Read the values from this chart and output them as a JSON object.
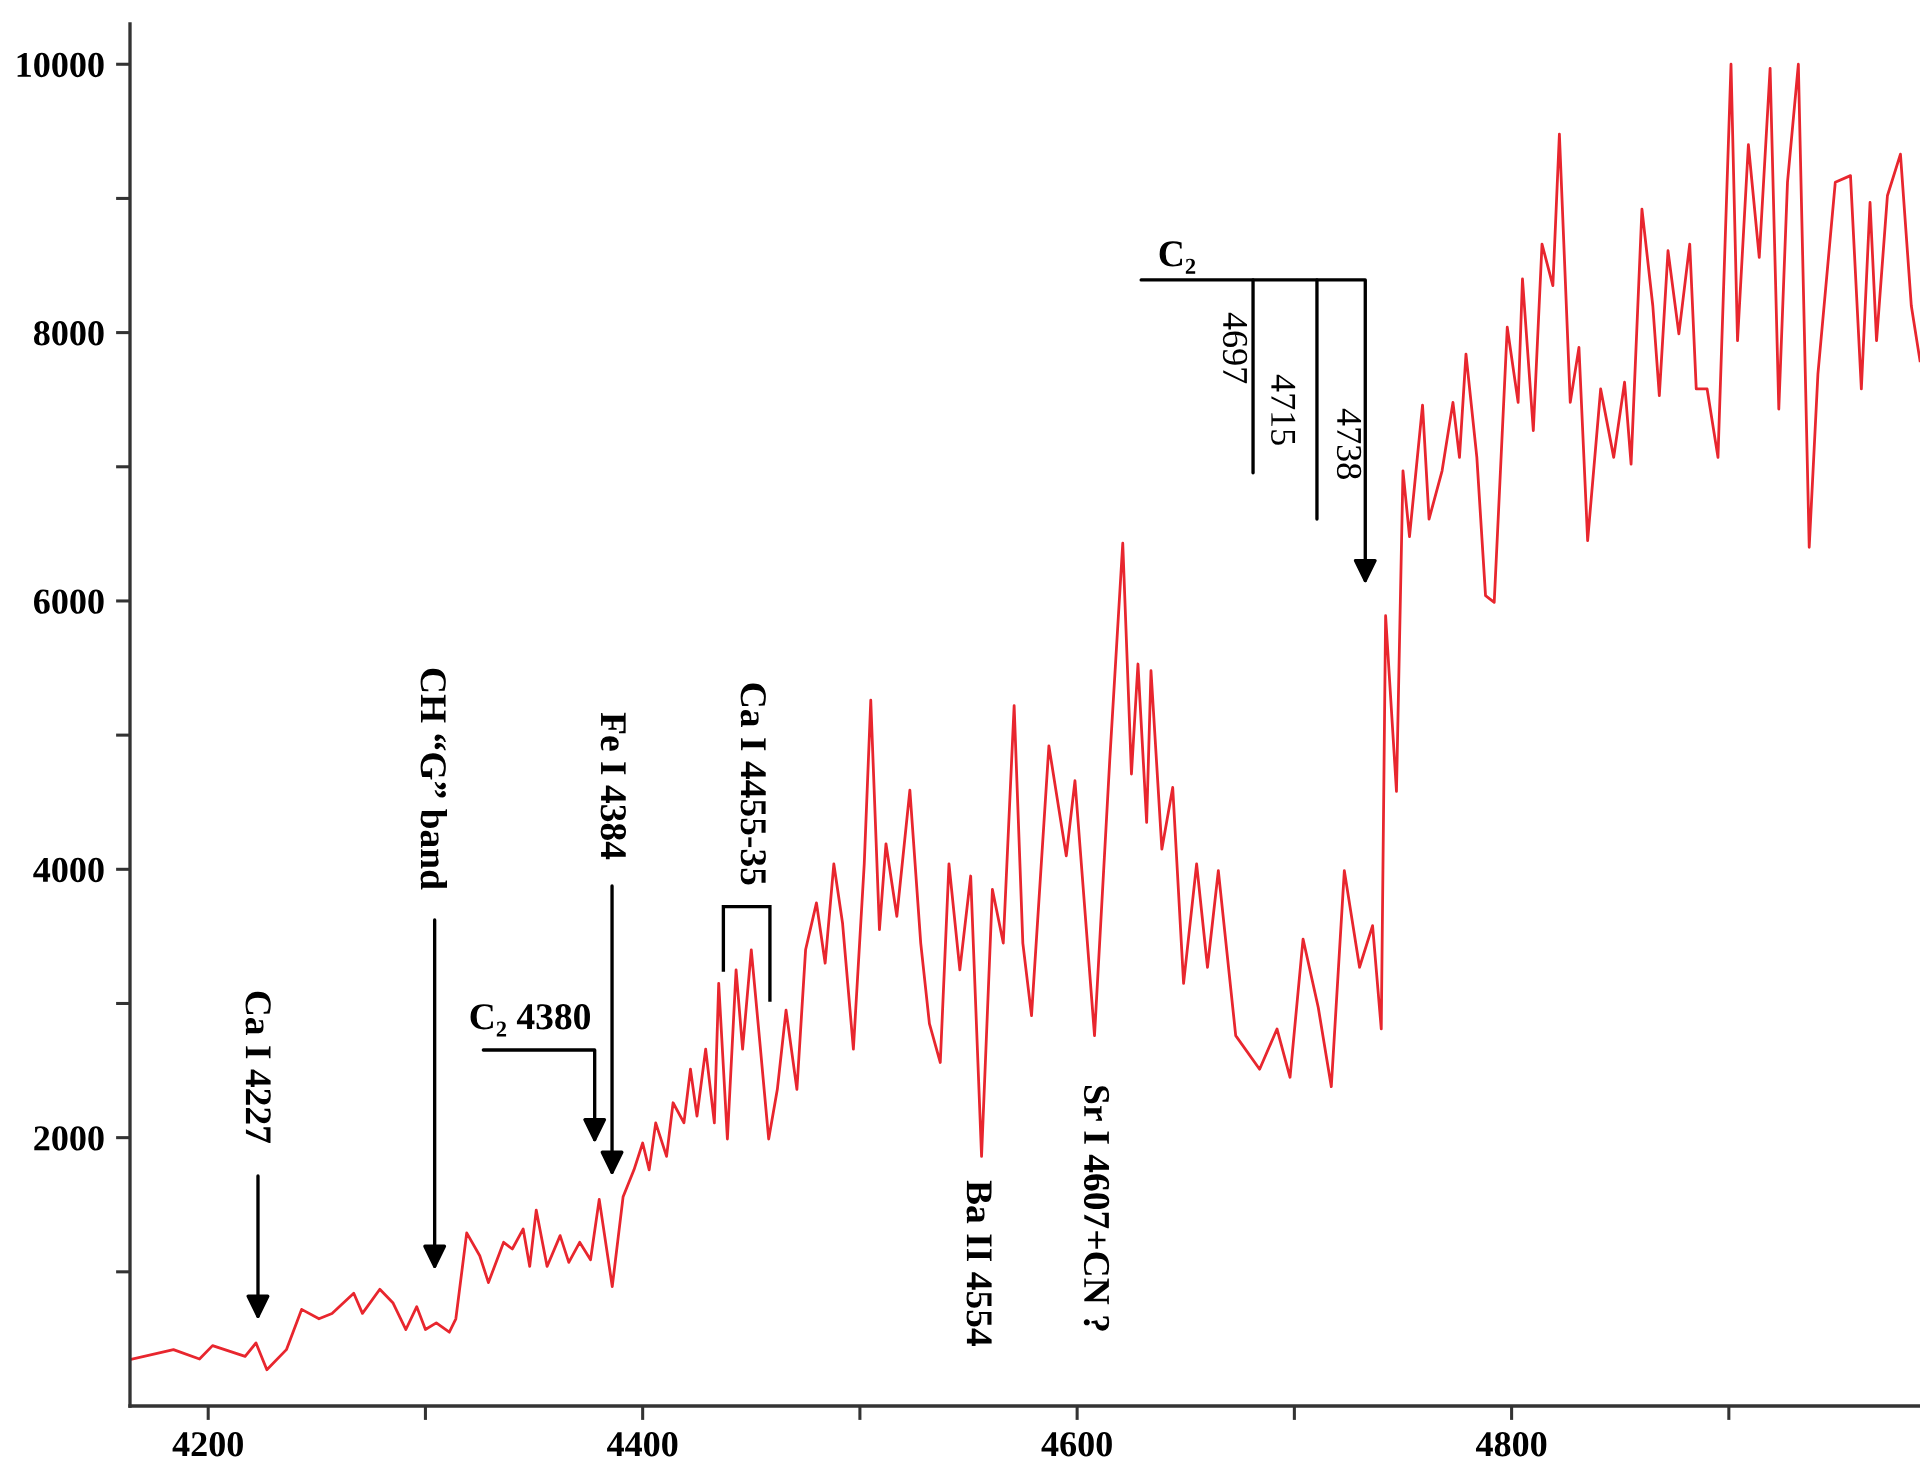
{
  "chart_data": {
    "type": "line",
    "color": "#e8262e",
    "line_style": "solid",
    "x": [
      4165,
      4184,
      4196,
      4202,
      4217,
      4222,
      4227,
      4236,
      4243,
      4251,
      4257,
      4267,
      4271,
      4279,
      4285,
      4291,
      4296,
      4300,
      4305,
      4311,
      4314,
      4319,
      4325,
      4329,
      4336,
      4340,
      4345,
      4348,
      4351,
      4356,
      4362,
      4366,
      4371,
      4376,
      4380,
      4386,
      4391,
      4396,
      4400,
      4403,
      4406,
      4411,
      4414,
      4419,
      4422,
      4425,
      4429,
      4433,
      4435,
      4439,
      4443,
      4446,
      4450,
      4454,
      4458,
      4462,
      4466,
      4471,
      4475,
      4480,
      4484,
      4488,
      4492,
      4497,
      4502,
      4505,
      4509,
      4512,
      4517,
      4523,
      4528,
      4532,
      4537,
      4541,
      4546,
      4551,
      4556,
      4561,
      4566,
      4571,
      4575,
      4579,
      4587,
      4595,
      4599,
      4608,
      4615,
      4621,
      4625,
      4628,
      4632,
      4634,
      4639,
      4644,
      4649,
      4655,
      4660,
      4665,
      4673,
      4684,
      4692,
      4698,
      4704,
      4711,
      4717,
      4723,
      4730,
      4736,
      4740,
      4742,
      4747,
      4750,
      4753,
      4759,
      4762,
      4768,
      4773,
      4776,
      4779,
      4784,
      4788,
      4792,
      4798,
      4803,
      4805,
      4810,
      4814,
      4819,
      4822,
      4827,
      4831,
      4835,
      4841,
      4847,
      4852,
      4855,
      4860,
      4865,
      4868,
      4872,
      4877,
      4882,
      4885,
      4890,
      4895,
      4901,
      4904,
      4909,
      4914,
      4919,
      4923,
      4927,
      4932,
      4937,
      4941,
      4949,
      4956,
      4961,
      4965,
      4968,
      4973,
      4979,
      4984,
      4988
    ],
    "values": [
      350,
      420,
      350,
      450,
      370,
      470,
      270,
      420,
      720,
      650,
      690,
      840,
      690,
      870,
      770,
      570,
      740,
      570,
      620,
      550,
      650,
      1290,
      1120,
      920,
      1220,
      1170,
      1320,
      1040,
      1460,
      1040,
      1270,
      1070,
      1220,
      1090,
      1540,
      890,
      1560,
      1760,
      1960,
      1760,
      2110,
      1860,
      2260,
      2110,
      2510,
      2160,
      2660,
      2110,
      3150,
      1990,
      3250,
      2660,
      3400,
      2700,
      1990,
      2360,
      2950,
      2360,
      3400,
      3750,
      3300,
      4040,
      3600,
      2660,
      4040,
      5260,
      3550,
      4190,
      3650,
      4590,
      3450,
      2850,
      2560,
      4040,
      3250,
      3950,
      1860,
      3850,
      3450,
      5220,
      3450,
      2910,
      4920,
      4100,
      4660,
      2760,
      4810,
      6430,
      4710,
      5530,
      4350,
      5480,
      4150,
      4610,
      3150,
      4040,
      3270,
      3990,
      2760,
      2510,
      2810,
      2450,
      3480,
      2970,
      2380,
      3990,
      3270,
      3580,
      2810,
      5890,
      4580,
      6970,
      6480,
      7460,
      6610,
      6970,
      7480,
      7070,
      7840,
      7070,
      6040,
      5990,
      8040,
      7480,
      8400,
      7270,
      8660,
      8350,
      9480,
      7480,
      7890,
      6450,
      7580,
      7070,
      7630,
      7020,
      8920,
      8200,
      7530,
      8610,
      7990,
      8660,
      7580,
      7580,
      7070,
      10000,
      7940,
      9400,
      8560,
      9970,
      7430,
      9120,
      10000,
      6400,
      7690,
      9120,
      9170,
      7580,
      8970,
      7940,
      9020,
      9330,
      8200,
      7790
    ],
    "xlim": [
      4164,
      4988
    ],
    "ylim": [
      0,
      10300
    ],
    "xticks": [
      4200,
      {
        "value": 4300,
        "label": null
      },
      4400,
      {
        "value": 4500,
        "label": null
      },
      4600,
      {
        "value": 4700,
        "label": null
      },
      4800,
      {
        "value": 4900,
        "label": null
      }
    ],
    "yticks": [
      {
        "value": 1000,
        "label": null
      },
      2000,
      {
        "value": 3000,
        "label": null
      },
      4000,
      {
        "value": 5000,
        "label": null
      },
      6000,
      {
        "value": 7000,
        "label": null
      },
      8000,
      {
        "value": 9000,
        "label": null
      },
      10000
    ],
    "annotations": [
      "Ca I 4227",
      "CH “G” band",
      "C₂ 4380",
      "Fe I 4384",
      "Ca I 4455-35",
      {
        "text": "Ba II 4554",
        "x": 4556,
        "y": 1860
      },
      {
        "text": "Sr I 4607+CN ?",
        "x": 4608,
        "y": 2760
      },
      "C₂",
      "4697",
      "4715",
      "4738"
    ]
  }
}
